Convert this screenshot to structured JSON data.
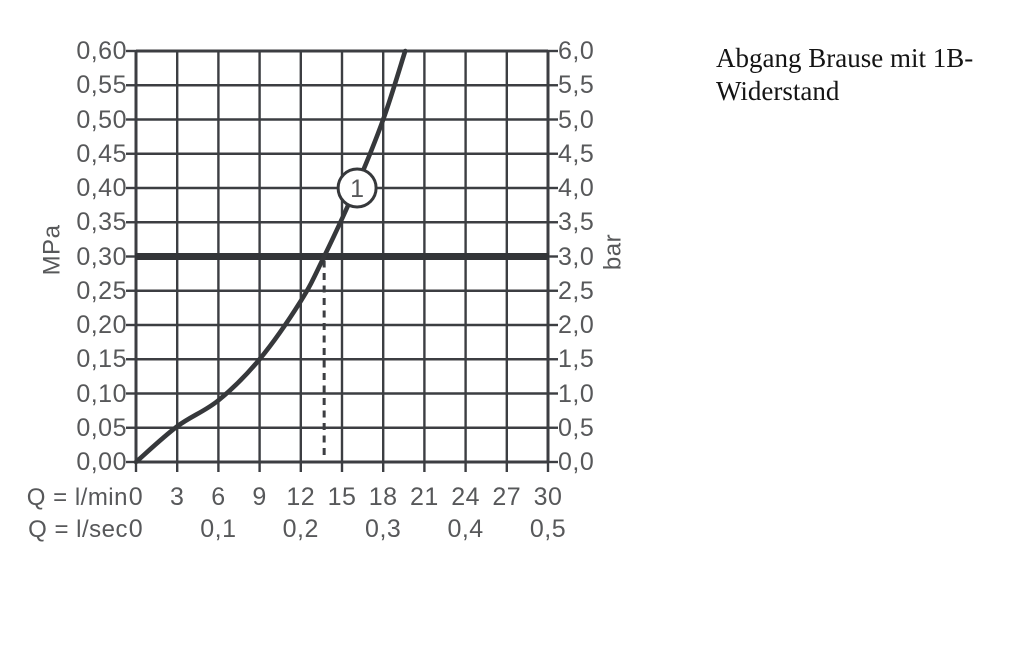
{
  "title": {
    "line1": "Abgang Brause mit 1B-",
    "line2": "Widerstand"
  },
  "chart_data": {
    "type": "line",
    "title": "Abgang Brause mit 1B-Widerstand",
    "grid": true,
    "left_axis": {
      "unit": "MPa",
      "min": 0,
      "max": 0.6,
      "step": 0.05,
      "tick_labels": [
        "0,60",
        "0,55",
        "0,50",
        "0,45",
        "0,40",
        "0,35",
        "0,30",
        "0,25",
        "0,20",
        "0,15",
        "0,10",
        "0,05",
        "0,00"
      ]
    },
    "right_axis": {
      "unit": "bar",
      "min": 0,
      "max": 6,
      "step": 0.5,
      "tick_labels": [
        "6,0",
        "5,5",
        "5,0",
        "4,5",
        "4,0",
        "3,5",
        "3,0",
        "2,5",
        "2,0",
        "1,5",
        "1,0",
        "0,5",
        "0,0"
      ]
    },
    "x_axis_lmin": {
      "unit_label": "Q = l/min",
      "min": 0,
      "max": 30,
      "step": 3,
      "tick_labels": [
        "0",
        "3",
        "6",
        "9",
        "12",
        "15",
        "18",
        "21",
        "24",
        "27",
        "30"
      ]
    },
    "x_axis_lsec": {
      "unit_label": "Q = l/sec",
      "ticks": [
        {
          "label": "0",
          "q": 0
        },
        {
          "label": "0,1",
          "q": 6
        },
        {
          "label": "0,2",
          "q": 12
        },
        {
          "label": "0,3",
          "q": 18
        },
        {
          "label": "0,4",
          "q": 24
        },
        {
          "label": "0,5",
          "q": 30
        }
      ]
    },
    "series": [
      {
        "name": "1",
        "marker": {
          "text": "1",
          "q": 16.1,
          "mpa": 0.4
        },
        "points_q_mpa": [
          [
            0,
            0
          ],
          [
            3,
            0.052
          ],
          [
            6,
            0.09
          ],
          [
            9,
            0.15
          ],
          [
            12,
            0.235
          ],
          [
            13.7,
            0.3
          ],
          [
            16,
            0.4
          ],
          [
            18,
            0.5
          ],
          [
            19.6,
            0.6
          ]
        ]
      }
    ],
    "reference_line": {
      "mpa": 0.3,
      "bar_label": "3,0"
    },
    "dashed_guide": {
      "q": 13.7,
      "from_mpa": 0.3,
      "to_mpa": 0
    },
    "colors": {
      "grid": "#3c3e42",
      "curve": "#36383b",
      "reference_line": "#333538",
      "labels": "#57585a",
      "title_text": "#141414",
      "background": "#ffffff"
    }
  }
}
